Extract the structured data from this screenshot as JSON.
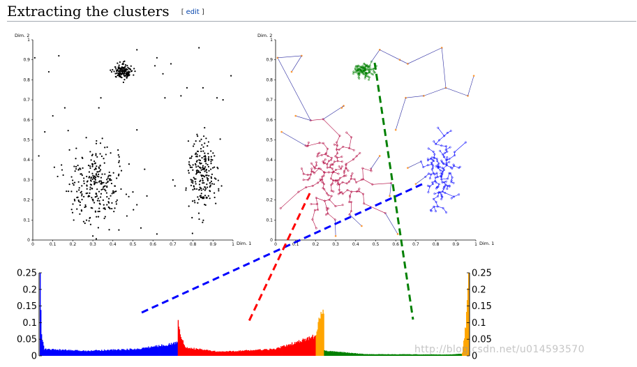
{
  "heading": {
    "title": "Extracting the clusters",
    "edit_open": "[",
    "edit_label": "edit",
    "edit_close": "]"
  },
  "watermark": "http://blog.csdn.net/u014593570",
  "colors": {
    "blue": "#0000ff",
    "red": "#ff0000",
    "green": "#008000",
    "orange": "#ffa500",
    "link": "#0645ad",
    "rule": "#a2a9b1"
  },
  "chart_data": [
    {
      "type": "scatter",
      "xlabel": "Dim. 1",
      "ylabel": "Dim. 2",
      "xlim": [
        0,
        1
      ],
      "ylim": [
        0,
        1
      ],
      "xticks": [
        "0",
        "0.1",
        "0.2",
        "0.3",
        "0.4",
        "0.5",
        "0.6",
        "0.7",
        "0.8",
        "0.9",
        "1"
      ],
      "yticks": [
        "0",
        "0.1",
        "0.2",
        "0.3",
        "0.4",
        "0.5",
        "0.6",
        "0.7",
        "0.8",
        "0.9",
        "1"
      ],
      "point_color": "#000000",
      "clusters": [
        {
          "cx": 0.31,
          "cy": 0.27,
          "sx": 0.075,
          "sy": 0.09,
          "n": 280
        },
        {
          "cx": 0.85,
          "cy": 0.33,
          "sx": 0.035,
          "sy": 0.09,
          "n": 220
        },
        {
          "cx": 0.45,
          "cy": 0.84,
          "sx": 0.025,
          "sy": 0.02,
          "n": 150
        }
      ],
      "noise": [
        [
          0.01,
          0.91
        ],
        [
          0.08,
          0.84
        ],
        [
          0.13,
          0.92
        ],
        [
          0.06,
          0.54
        ],
        [
          0.1,
          0.62
        ],
        [
          0.16,
          0.66
        ],
        [
          0.03,
          0.42
        ],
        [
          0.34,
          0.71
        ],
        [
          0.33,
          0.66
        ],
        [
          0.52,
          0.95
        ],
        [
          0.61,
          0.87
        ],
        [
          0.65,
          0.83
        ],
        [
          0.62,
          0.91
        ],
        [
          0.69,
          0.88
        ],
        [
          0.74,
          0.72
        ],
        [
          0.77,
          0.76
        ],
        [
          0.66,
          0.71
        ],
        [
          0.83,
          0.96
        ],
        [
          0.85,
          0.76
        ],
        [
          0.92,
          0.71
        ],
        [
          0.95,
          0.7
        ],
        [
          0.99,
          0.82
        ],
        [
          0.52,
          0.55
        ],
        [
          0.57,
          0.22
        ],
        [
          0.5,
          0.24
        ],
        [
          0.47,
          0.12
        ],
        [
          0.54,
          0.06
        ],
        [
          0.62,
          0.03
        ],
        [
          0.3,
          0.02
        ],
        [
          0.43,
          0.05
        ],
        [
          0.7,
          0.3
        ],
        [
          0.71,
          0.27
        ]
      ]
    },
    {
      "type": "scatter",
      "xlabel": "Dim. 1",
      "ylabel": "Dim. 2",
      "xlim": [
        0,
        1
      ],
      "ylim": [
        0,
        1
      ],
      "xticks": [
        "0",
        "0.1",
        "0.2",
        "0.3",
        "0.4",
        "0.5",
        "0.6",
        "0.7",
        "0.8",
        "0.9",
        "1"
      ],
      "yticks": [
        "0",
        "0.1",
        "0.2",
        "0.3",
        "0.4",
        "0.5",
        "0.6",
        "0.7",
        "0.8",
        "0.9",
        "1"
      ],
      "edge_color": "#2a2aa0",
      "trees": [
        {
          "color": "#b0003a",
          "cx": 0.28,
          "cy": 0.32,
          "sx": 0.085,
          "sy": 0.095,
          "n": 170
        },
        {
          "color": "#0000ff",
          "cx": 0.83,
          "cy": 0.32,
          "sx": 0.04,
          "sy": 0.09,
          "n": 140
        },
        {
          "color": "#008000",
          "cx": 0.44,
          "cy": 0.85,
          "sx": 0.025,
          "sy": 0.018,
          "n": 110
        }
      ],
      "noise": [
        [
          0.01,
          0.91
        ],
        [
          0.13,
          0.92
        ],
        [
          0.08,
          0.84
        ],
        [
          0.03,
          0.54
        ],
        [
          0.1,
          0.62
        ],
        [
          0.34,
          0.67
        ],
        [
          0.33,
          0.66
        ],
        [
          0.52,
          0.95
        ],
        [
          0.62,
          0.9
        ],
        [
          0.66,
          0.88
        ],
        [
          0.83,
          0.96
        ],
        [
          0.85,
          0.76
        ],
        [
          0.96,
          0.72
        ],
        [
          0.99,
          0.82
        ],
        [
          0.74,
          0.72
        ],
        [
          0.65,
          0.71
        ],
        [
          0.6,
          0.55
        ],
        [
          0.52,
          0.42
        ],
        [
          0.61,
          0.03
        ],
        [
          0.43,
          0.07
        ],
        [
          0.3,
          0.02
        ],
        [
          0.66,
          0.36
        ],
        [
          0.7,
          0.28
        ],
        [
          0.57,
          0.22
        ]
      ]
    },
    {
      "type": "bar",
      "yticks": [
        "0",
        "0.05",
        "0.1",
        "0.15",
        "0.2",
        "0.25"
      ],
      "ylim": [
        0,
        0.25
      ],
      "segments": [
        {
          "color": "#0000ff",
          "n": 200,
          "shape": [
            [
              0,
              0.24
            ],
            [
              0.01,
              0.06
            ],
            [
              0.03,
              0.02
            ],
            [
              0.3,
              0.015
            ],
            [
              0.7,
              0.02
            ],
            [
              0.95,
              0.035
            ],
            [
              1,
              0.04
            ]
          ]
        },
        {
          "color": "#ff0000",
          "n": 200,
          "shape": [
            [
              0,
              0.11
            ],
            [
              0.02,
              0.06
            ],
            [
              0.05,
              0.025
            ],
            [
              0.3,
              0.012
            ],
            [
              0.7,
              0.02
            ],
            [
              0.9,
              0.045
            ],
            [
              1,
              0.06
            ]
          ]
        },
        {
          "color": "#ffa500",
          "n": 12,
          "shape": [
            [
              0,
              0.06
            ],
            [
              0.5,
              0.12
            ],
            [
              1,
              0.145
            ]
          ]
        },
        {
          "color": "#008000",
          "n": 200,
          "shape": [
            [
              0,
              0.015
            ],
            [
              0.3,
              0.005
            ],
            [
              0.9,
              0.004
            ],
            [
              1,
              0.006
            ]
          ]
        },
        {
          "color": "#ffa500",
          "n": 10,
          "shape": [
            [
              0,
              0.01
            ],
            [
              0.6,
              0.1
            ],
            [
              1,
              0.25
            ]
          ]
        }
      ],
      "connectors": [
        {
          "color": "#0000ff",
          "from": [
            605,
            264
          ],
          "to": [
            203,
            448
          ]
        },
        {
          "color": "#ff0000",
          "from": [
            444,
            277
          ],
          "to": [
            357,
            460
          ]
        },
        {
          "color": "#008000",
          "from": [
            537,
            90
          ],
          "to": [
            592,
            458
          ]
        }
      ]
    }
  ]
}
